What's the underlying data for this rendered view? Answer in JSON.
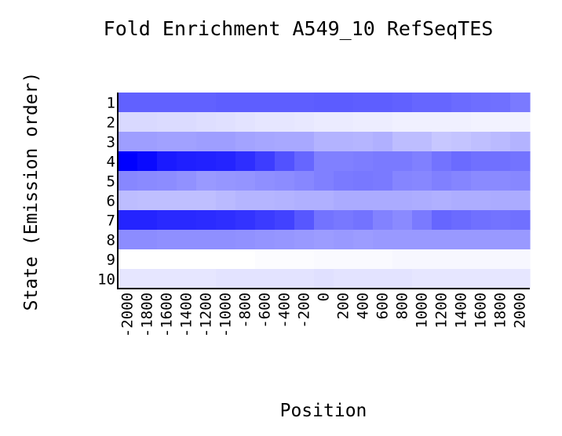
{
  "chart_data": {
    "type": "heatmap",
    "title": "Fold Enrichment A549_10 RefSeqTES",
    "xlabel": "Position",
    "ylabel": "State (Emission order)",
    "x_ticks": [
      "-2000",
      "-1800",
      "-1600",
      "-1400",
      "-1200",
      "-1000",
      "-800",
      "-600",
      "-400",
      "-200",
      "0",
      "200",
      "400",
      "600",
      "800",
      "1000",
      "1200",
      "1400",
      "1600",
      "1800",
      "2000"
    ],
    "y_ticks": [
      "1",
      "2",
      "3",
      "4",
      "5",
      "6",
      "7",
      "8",
      "9",
      "10"
    ],
    "color_low": "#ffffff",
    "color_high": "#0000ff",
    "value_range": [
      0,
      1
    ],
    "values": [
      [
        0.62,
        0.62,
        0.62,
        0.62,
        0.62,
        0.63,
        0.63,
        0.63,
        0.63,
        0.63,
        0.64,
        0.64,
        0.63,
        0.63,
        0.62,
        0.6,
        0.6,
        0.58,
        0.57,
        0.56,
        0.52
      ],
      [
        0.15,
        0.15,
        0.14,
        0.14,
        0.13,
        0.12,
        0.11,
        0.1,
        0.1,
        0.09,
        0.08,
        0.08,
        0.07,
        0.07,
        0.06,
        0.06,
        0.06,
        0.06,
        0.05,
        0.05,
        0.05
      ],
      [
        0.38,
        0.38,
        0.37,
        0.37,
        0.38,
        0.38,
        0.36,
        0.35,
        0.34,
        0.34,
        0.3,
        0.3,
        0.29,
        0.31,
        0.26,
        0.26,
        0.22,
        0.23,
        0.25,
        0.27,
        0.3
      ],
      [
        1.0,
        0.96,
        0.9,
        0.88,
        0.87,
        0.86,
        0.82,
        0.76,
        0.68,
        0.6,
        0.5,
        0.5,
        0.51,
        0.52,
        0.52,
        0.5,
        0.55,
        0.58,
        0.56,
        0.56,
        0.55
      ],
      [
        0.47,
        0.46,
        0.45,
        0.43,
        0.4,
        0.41,
        0.42,
        0.44,
        0.45,
        0.47,
        0.5,
        0.52,
        0.53,
        0.52,
        0.48,
        0.47,
        0.5,
        0.48,
        0.46,
        0.46,
        0.47
      ],
      [
        0.26,
        0.25,
        0.25,
        0.25,
        0.25,
        0.27,
        0.29,
        0.29,
        0.3,
        0.31,
        0.31,
        0.33,
        0.33,
        0.33,
        0.33,
        0.32,
        0.31,
        0.32,
        0.32,
        0.33,
        0.33
      ],
      [
        0.86,
        0.86,
        0.84,
        0.84,
        0.83,
        0.82,
        0.8,
        0.77,
        0.74,
        0.66,
        0.55,
        0.53,
        0.55,
        0.49,
        0.46,
        0.52,
        0.6,
        0.58,
        0.56,
        0.55,
        0.56
      ],
      [
        0.45,
        0.45,
        0.44,
        0.44,
        0.44,
        0.44,
        0.43,
        0.42,
        0.41,
        0.4,
        0.39,
        0.4,
        0.39,
        0.4,
        0.4,
        0.4,
        0.4,
        0.4,
        0.4,
        0.4,
        0.4
      ],
      [
        0.0,
        0.0,
        0.0,
        0.0,
        0.0,
        0.0,
        0.0,
        0.01,
        0.01,
        0.01,
        0.02,
        0.02,
        0.02,
        0.02,
        0.03,
        0.03,
        0.03,
        0.03,
        0.03,
        0.03,
        0.03
      ],
      [
        0.1,
        0.1,
        0.1,
        0.1,
        0.1,
        0.11,
        0.11,
        0.11,
        0.11,
        0.11,
        0.12,
        0.11,
        0.11,
        0.11,
        0.11,
        0.1,
        0.1,
        0.1,
        0.1,
        0.1,
        0.1
      ]
    ]
  }
}
